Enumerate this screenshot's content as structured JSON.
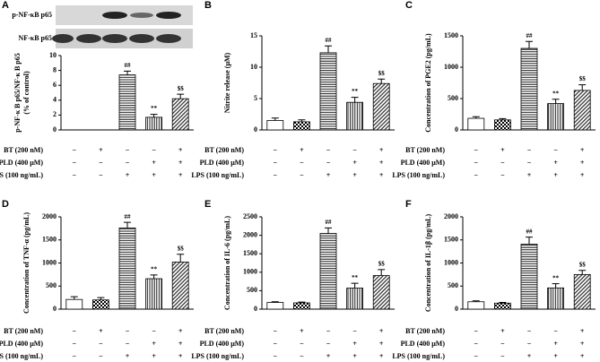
{
  "treatments": {
    "rows": [
      {
        "label": "BT (200 nM)",
        "marks": [
          "−",
          "+",
          "−",
          "−",
          "+"
        ]
      },
      {
        "label": "PLD (400 μM)",
        "marks": [
          "−",
          "−",
          "−",
          "+",
          "+"
        ]
      },
      {
        "label": "LPS (100 ng/mL)",
        "marks": [
          "−",
          "−",
          "+",
          "+",
          "+"
        ]
      }
    ]
  },
  "chart_data": [
    {
      "type": "bar",
      "label": "A",
      "blot_labels": [
        "p-NF-κB p65",
        "NF-κB p65"
      ],
      "ylabel": [
        "p-NF-κ B p65/NF-κ B p65",
        "(% of control)"
      ],
      "categories": [
        null,
        null,
        null,
        null,
        null
      ],
      "values": [
        0,
        0,
        7.4,
        1.7,
        4.2
      ],
      "errors": [
        0,
        0,
        0.5,
        0.4,
        0.6
      ],
      "annotations": [
        null,
        null,
        "##",
        "**",
        "$$"
      ],
      "patterns": [
        "none",
        "checker",
        "horizontal",
        "vertical",
        "diagonal"
      ],
      "color": "#000000",
      "ylim": [
        0,
        10
      ],
      "yticks": [
        0,
        2,
        4,
        6,
        8,
        10
      ]
    },
    {
      "type": "bar",
      "label": "B",
      "ylabel": "Nitrite release (μM)",
      "categories": [
        null,
        null,
        null,
        null,
        null
      ],
      "values": [
        1.5,
        1.3,
        12.3,
        4.4,
        7.4
      ],
      "errors": [
        0.4,
        0.3,
        1.1,
        0.8,
        0.7
      ],
      "annotations": [
        null,
        null,
        "##",
        "**",
        "$$"
      ],
      "patterns": [
        "none",
        "checker",
        "horizontal",
        "vertical",
        "diagonal"
      ],
      "color": "#000000",
      "ylim": [
        0,
        15
      ],
      "yticks": [
        0,
        5,
        10,
        15
      ]
    },
    {
      "type": "bar",
      "label": "C",
      "ylabel": "Concentration of PGE2 (pg/mL)",
      "categories": [
        null,
        null,
        null,
        null,
        null
      ],
      "values": [
        185,
        160,
        1300,
        420,
        630
      ],
      "errors": [
        25,
        20,
        110,
        70,
        90
      ],
      "annotations": [
        null,
        null,
        "##",
        "**",
        "$$"
      ],
      "patterns": [
        "none",
        "checker",
        "horizontal",
        "vertical",
        "diagonal"
      ],
      "color": "#000000",
      "ylim": [
        0,
        1500
      ],
      "yticks": [
        0,
        500,
        1000,
        1500
      ]
    },
    {
      "type": "bar",
      "label": "D",
      "ylabel": "Concentration of TNF-α (pg/mL)",
      "categories": [
        null,
        null,
        null,
        null,
        null
      ],
      "values": [
        210,
        200,
        1760,
        660,
        1020
      ],
      "errors": [
        60,
        50,
        120,
        80,
        170
      ],
      "annotations": [
        null,
        null,
        "##",
        "**",
        "$$"
      ],
      "patterns": [
        "none",
        "checker",
        "horizontal",
        "vertical",
        "diagonal"
      ],
      "color": "#000000",
      "ylim": [
        0,
        2000
      ],
      "yticks": [
        0,
        500,
        1000,
        1500,
        2000
      ]
    },
    {
      "type": "bar",
      "label": "E",
      "ylabel": "Concentration of IL-6 (pg/mL)",
      "categories": [
        null,
        null,
        null,
        null,
        null
      ],
      "values": [
        180,
        170,
        2050,
        570,
        910
      ],
      "errors": [
        20,
        20,
        150,
        130,
        160
      ],
      "annotations": [
        null,
        null,
        "##",
        "**",
        "$$"
      ],
      "patterns": [
        "none",
        "checker",
        "horizontal",
        "vertical",
        "diagonal"
      ],
      "color": "#000000",
      "ylim": [
        0,
        2500
      ],
      "yticks": [
        0,
        500,
        1000,
        1500,
        2000,
        2500
      ]
    },
    {
      "type": "bar",
      "label": "F",
      "ylabel": "Concentration of IL-1β (pg/mL)",
      "categories": [
        null,
        null,
        null,
        null,
        null
      ],
      "values": [
        160,
        130,
        1410,
        460,
        750
      ],
      "errors": [
        20,
        15,
        150,
        90,
        90
      ],
      "annotations": [
        null,
        null,
        "##",
        "**",
        "$$"
      ],
      "patterns": [
        "none",
        "checker",
        "horizontal",
        "vertical",
        "diagonal"
      ],
      "color": "#000000",
      "ylim": [
        0,
        2000
      ],
      "yticks": [
        0,
        500,
        1000,
        1500,
        2000
      ]
    }
  ]
}
